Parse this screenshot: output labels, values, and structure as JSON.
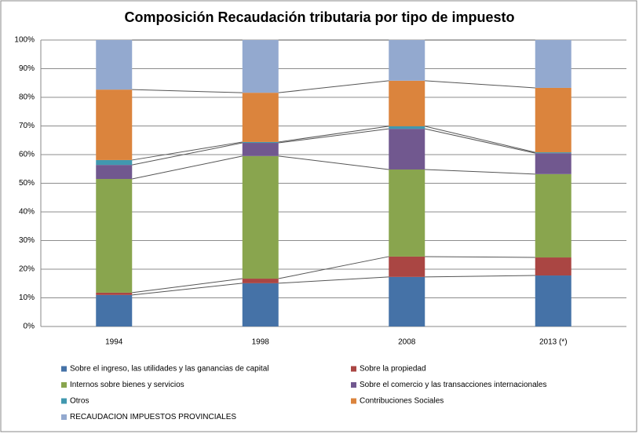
{
  "chart_data": {
    "type": "stacked_bar_100",
    "title": "Composición Recaudación tributaria por tipo de impuesto",
    "categories": [
      "1994",
      "1998",
      "2008",
      "2013 (*)"
    ],
    "series": [
      {
        "name": "Sobre el ingreso, las utilidades y las ganancias de capital",
        "color": "#4572a7",
        "values": [
          11.0,
          15.1,
          17.3,
          17.8
        ]
      },
      {
        "name": "Sobre la propiedad",
        "color": "#aa4643",
        "values": [
          0.8,
          1.6,
          7.1,
          6.3
        ]
      },
      {
        "name": "Internos sobre bienes y servicios",
        "color": "#89a54e",
        "values": [
          39.7,
          42.8,
          30.4,
          29.1
        ]
      },
      {
        "name": "Sobre el comercio y las transacciones internacionales",
        "color": "#71588f",
        "values": [
          4.9,
          4.6,
          14.2,
          7.3
        ]
      },
      {
        "name": "Otros",
        "color": "#4198af",
        "values": [
          1.7,
          0.3,
          0.9,
          0.3
        ]
      },
      {
        "name": "Contribuciones Sociales",
        "color": "#db843d",
        "values": [
          24.6,
          17.2,
          15.9,
          22.5
        ]
      },
      {
        "name": "RECAUDACION IMPUESTOS PROVINCIALES",
        "color": "#93a9cf",
        "values": [
          17.3,
          18.4,
          14.2,
          16.7
        ]
      }
    ],
    "ylim": [
      0,
      100
    ],
    "yticks": [
      {
        "value": 0,
        "label": "0%"
      },
      {
        "value": 10,
        "label": "10%"
      },
      {
        "value": 20,
        "label": "20%"
      },
      {
        "value": 30,
        "label": "30%"
      },
      {
        "value": 40,
        "label": "40%"
      },
      {
        "value": 50,
        "label": "50%"
      },
      {
        "value": 60,
        "label": "60%"
      },
      {
        "value": 70,
        "label": "70%"
      },
      {
        "value": 80,
        "label": "80%"
      },
      {
        "value": 90,
        "label": "90%"
      },
      {
        "value": 100,
        "label": "100%"
      }
    ],
    "grid": true
  }
}
